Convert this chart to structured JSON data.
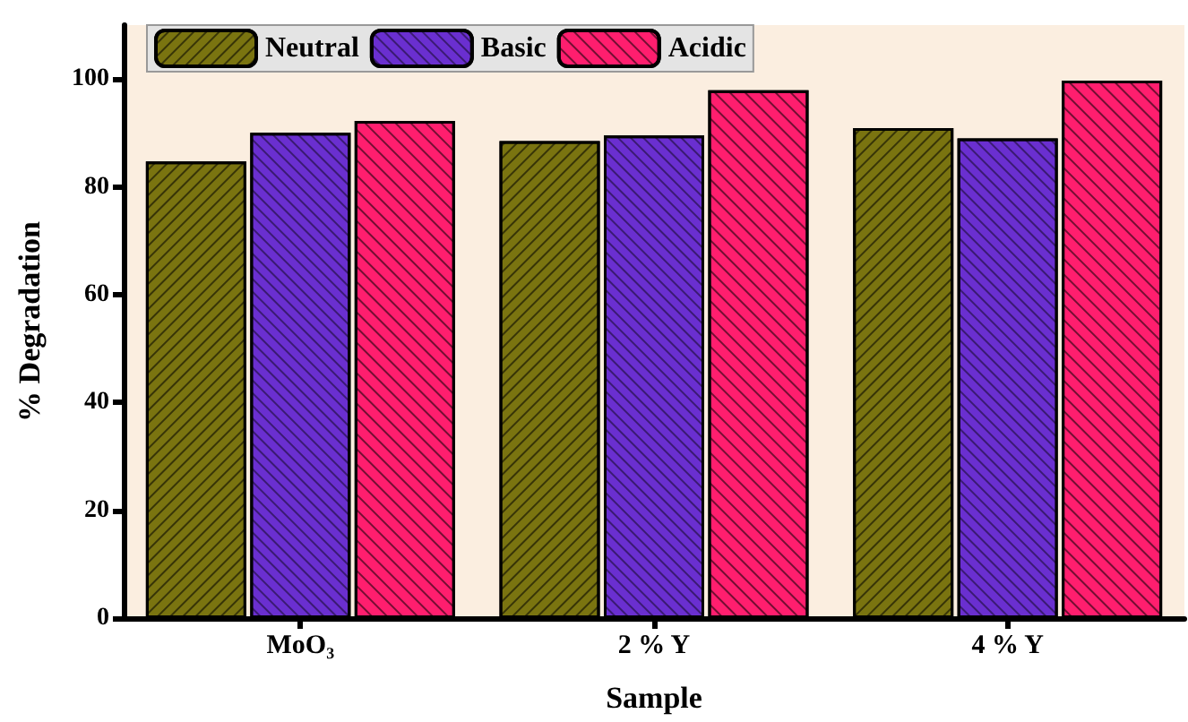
{
  "chart_data": {
    "type": "bar",
    "xlabel": "Sample",
    "ylabel": "% Degradation",
    "categories": [
      "MoO₃",
      "2 % Y",
      "4 % Y"
    ],
    "series": [
      {
        "name": "Neutral",
        "color": "#7a7410",
        "values": [
          84.7,
          88.5,
          90.9
        ]
      },
      {
        "name": "Basic",
        "color": "#6a2fd0",
        "values": [
          90.0,
          89.5,
          89.0
        ]
      },
      {
        "name": "Acidic",
        "color": "#ff1e6e",
        "values": [
          92.2,
          97.9,
          99.7
        ]
      }
    ],
    "ylim": [
      0,
      110
    ],
    "yticks": [
      0,
      20,
      40,
      60,
      80,
      100
    ],
    "grid": false,
    "legend": "top left"
  }
}
